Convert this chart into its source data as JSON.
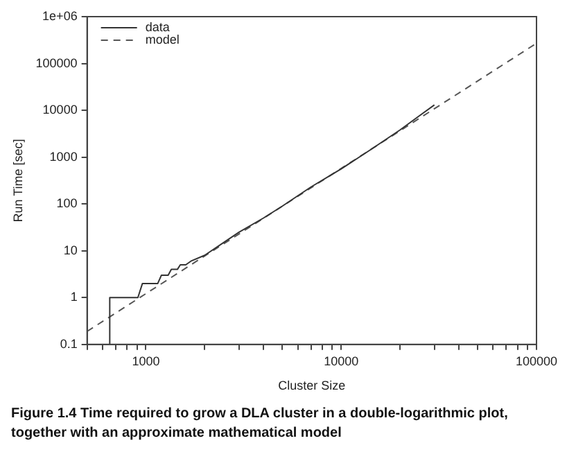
{
  "chart_data": {
    "type": "line",
    "xlabel": "Cluster Size",
    "ylabel": "Run Time [sec]",
    "log": "xy",
    "xlim": [
      500,
      100000
    ],
    "ylim": [
      0.1,
      1000000
    ],
    "xticks": [
      {
        "value": 500,
        "label": null
      },
      {
        "value": 600,
        "label": null
      },
      {
        "value": 700,
        "label": null
      },
      {
        "value": 800,
        "label": null
      },
      {
        "value": 900,
        "label": null
      },
      1000,
      {
        "value": 2000,
        "label": null
      },
      {
        "value": 3000,
        "label": null
      },
      {
        "value": 4000,
        "label": null
      },
      {
        "value": 5000,
        "label": null
      },
      {
        "value": 6000,
        "label": null
      },
      {
        "value": 7000,
        "label": null
      },
      {
        "value": 8000,
        "label": null
      },
      {
        "value": 9000,
        "label": null
      },
      10000,
      {
        "value": 20000,
        "label": null
      },
      {
        "value": 30000,
        "label": null
      },
      {
        "value": 40000,
        "label": null
      },
      {
        "value": 50000,
        "label": null
      },
      {
        "value": 60000,
        "label": null
      },
      {
        "value": 70000,
        "label": null
      },
      {
        "value": 80000,
        "label": null
      },
      {
        "value": 90000,
        "label": null
      },
      100000
    ],
    "yticks": [
      0.1,
      1,
      10,
      100,
      1000,
      10000,
      100000,
      {
        "value": 1000000,
        "label": "1e+06"
      }
    ],
    "grid": false,
    "legend": "top left",
    "marker": "none",
    "series": [
      {
        "name": "data",
        "color": "#333333",
        "line_style": "solid",
        "x": [
          653,
          653,
          910,
          960,
          1150,
          1200,
          1300,
          1350,
          1450,
          1500,
          1600,
          1700,
          2000,
          2500,
          3000,
          4000,
          5000,
          7000,
          10000,
          14000,
          20000,
          25000,
          30000
        ],
        "values": [
          0.1,
          1,
          1,
          2,
          2,
          3,
          3,
          4,
          4,
          5,
          5,
          6,
          8,
          15,
          25,
          50,
          90,
          230,
          560,
          1400,
          3800,
          7500,
          13000
        ]
      },
      {
        "name": "model",
        "color": "#555555",
        "line_style": "dashed",
        "x": [
          500,
          100000
        ],
        "values": [
          0.19,
          270000
        ]
      }
    ],
    "annotations": [
      "Figure 1.4    Time required to grow a DLA cluster in a double-logarithmic plot, together with an approximate mathematical model"
    ]
  }
}
